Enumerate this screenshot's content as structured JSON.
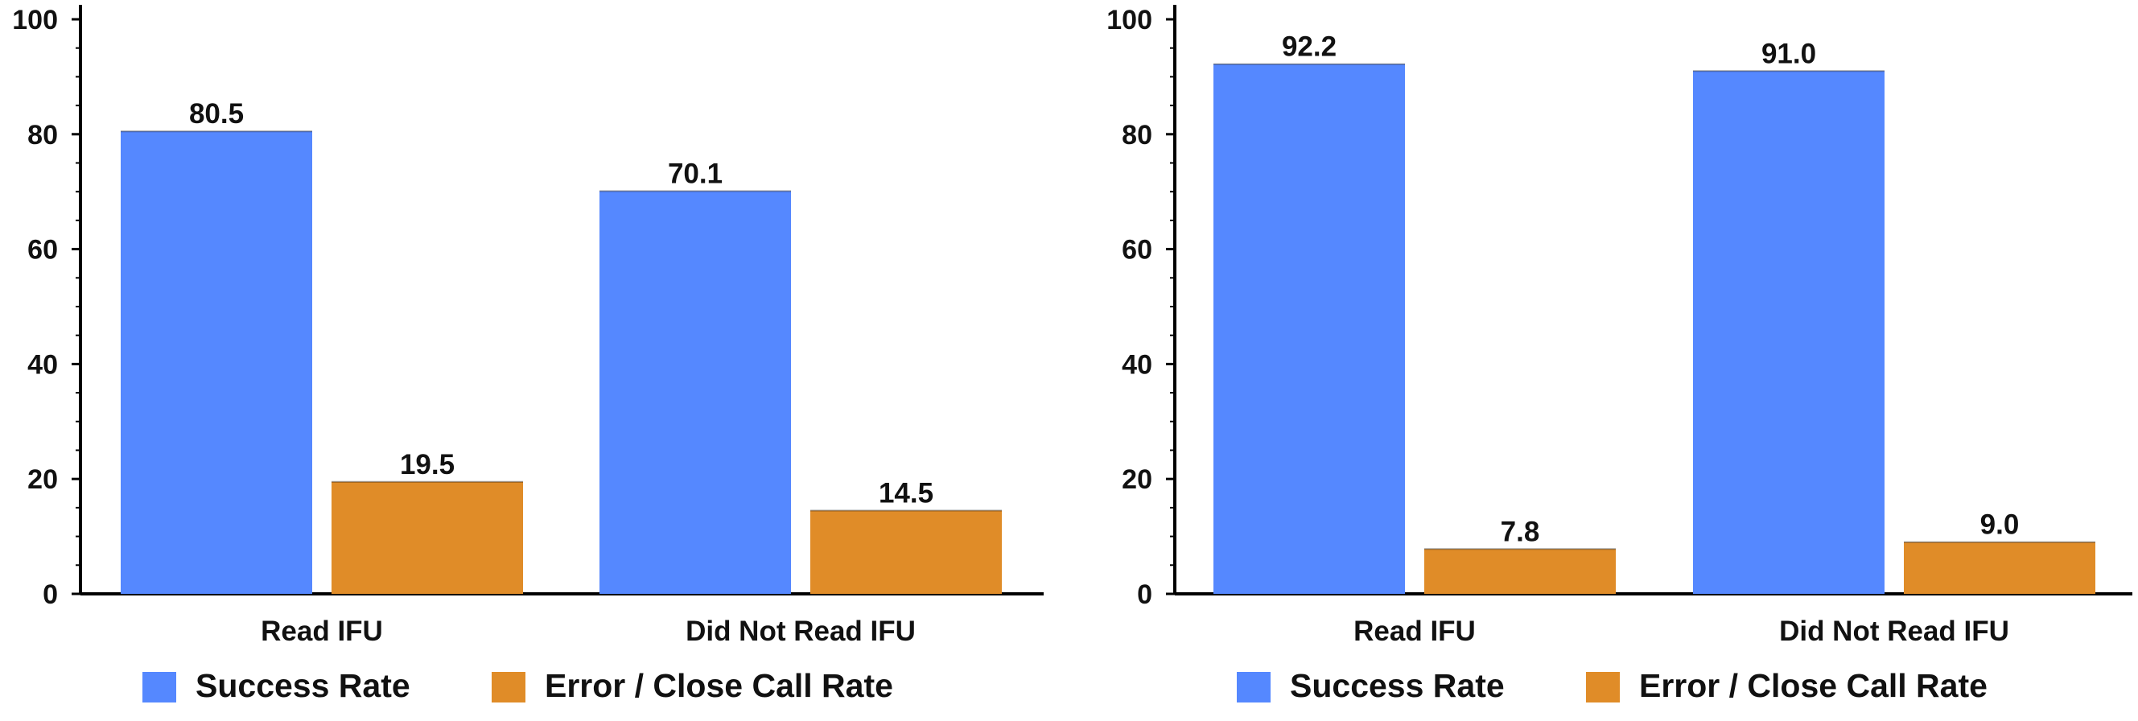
{
  "chart_data": [
    {
      "type": "bar",
      "categories": [
        "Read IFU",
        "Did Not Read IFU"
      ],
      "series": [
        {
          "name": "Success Rate",
          "color": "#5588FF",
          "values": [
            80.5,
            70.1
          ],
          "labels": [
            "80.5",
            "70.1"
          ]
        },
        {
          "name": "Error / Close Call Rate",
          "color": "#E08C28",
          "values": [
            19.5,
            14.5
          ],
          "labels": [
            "19.5",
            "14.5"
          ]
        }
      ],
      "ylim": [
        0,
        100
      ],
      "yticks": [
        0,
        20,
        40,
        60,
        80,
        100
      ],
      "ytick_labels": [
        "0",
        "20",
        "40",
        "60",
        "80",
        "100"
      ],
      "grid": false,
      "legend_position": "bottom"
    },
    {
      "type": "bar",
      "categories": [
        "Read IFU",
        "Did Not Read IFU"
      ],
      "series": [
        {
          "name": "Success Rate",
          "color": "#5588FF",
          "values": [
            92.2,
            91.0
          ],
          "labels": [
            "92.2",
            "91.0"
          ]
        },
        {
          "name": "Error / Close Call Rate",
          "color": "#E08C28",
          "values": [
            7.8,
            9.0
          ],
          "labels": [
            "7.8",
            "9.0"
          ]
        }
      ],
      "ylim": [
        0,
        100
      ],
      "yticks": [
        0,
        20,
        40,
        60,
        80,
        100
      ],
      "ytick_labels": [
        "0",
        "20",
        "40",
        "60",
        "80",
        "100"
      ],
      "grid": false,
      "legend_position": "bottom"
    }
  ]
}
